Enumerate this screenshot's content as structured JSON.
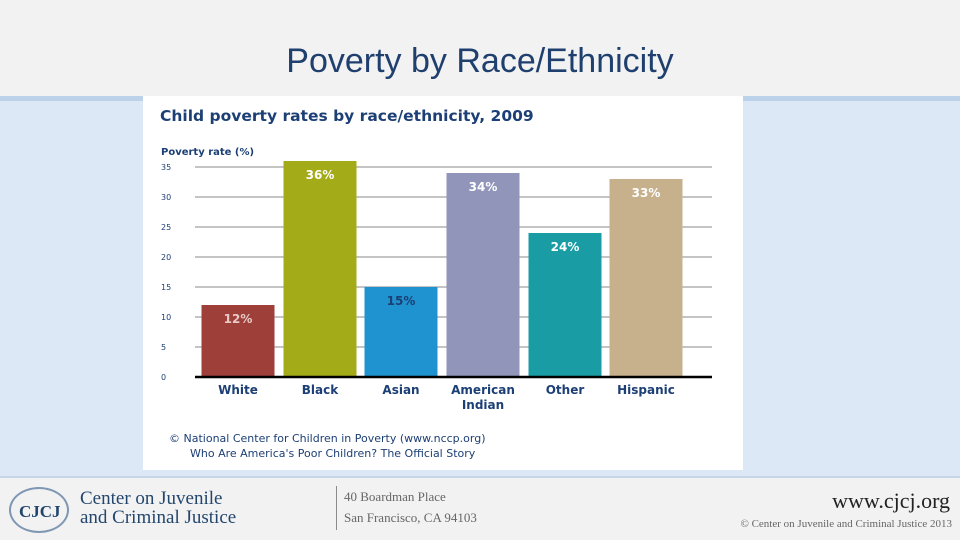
{
  "slide": {
    "title": "Poverty by Race/Ethnicity"
  },
  "chart_data": {
    "type": "bar",
    "title": "Child poverty rates by race/ethnicity, 2009",
    "ylabel": "Poverty rate (%)",
    "xlabel": "",
    "ylim": [
      0,
      35
    ],
    "yticks": [
      0,
      5,
      10,
      15,
      20,
      25,
      30,
      35
    ],
    "grid": true,
    "categories": [
      "White",
      "Black",
      "Asian",
      "American Indian",
      "Other",
      "Hispanic"
    ],
    "category_lines": [
      [
        "White"
      ],
      [
        "Black"
      ],
      [
        "Asian"
      ],
      [
        "American",
        "Indian"
      ],
      [
        "Other"
      ],
      [
        "Hispanic"
      ]
    ],
    "values": [
      12,
      36,
      15,
      34,
      24,
      33
    ],
    "value_labels": [
      "12%",
      "36%",
      "15%",
      "34%",
      "24%",
      "33%"
    ],
    "colors": [
      "#9e3f3a",
      "#a3ab19",
      "#1f93cf",
      "#9095b9",
      "#199ca3",
      "#c7b18d"
    ],
    "label_colors": [
      "#e8c9c6",
      "#ffffff",
      "#1c3f75",
      "#ffffff",
      "#ffffff",
      "#ffffff"
    ],
    "source_lines": [
      "© National Center for Children in Poverty (www.nccp.org)",
      "Who Are America's Poor Children? The Official Story"
    ]
  },
  "footer": {
    "logo_text": "CJCJ",
    "org_line1": "Center on Juvenile",
    "org_line2": "and Criminal Justice",
    "address_line1": "40 Boardman Place",
    "address_line2": "San Francisco, CA 94103",
    "url": "www.cjcj.org",
    "copyright": "© Center on Juvenile and Criminal Justice 2013"
  }
}
